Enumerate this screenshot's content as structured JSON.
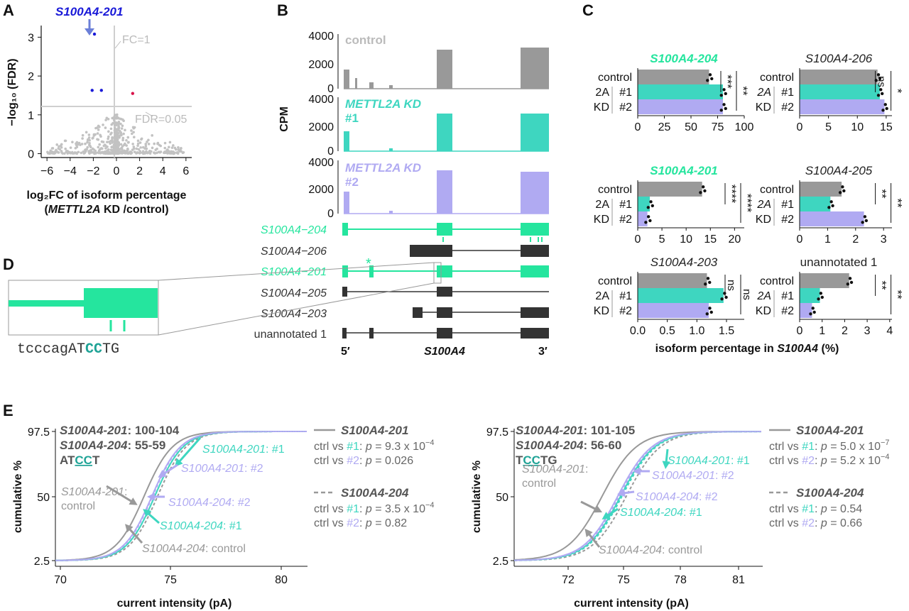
{
  "colors": {
    "control": "#999999",
    "kd1": "#3ed6c0",
    "kd2": "#b0aaf2",
    "dark": "#333333",
    "blue": "#1a1ad8",
    "green": "#25e59e"
  },
  "panels": {
    "a": "A",
    "b": "B",
    "c": "C",
    "d": "D",
    "e": "E"
  },
  "panelA": {
    "highlight": "S100A4-201",
    "fc_label": "FC=1",
    "fdr_label": "FDR=0.05",
    "ylabel": "−log₁₀ (FDR)",
    "xlabel_line1": "log₂FC of isoform percentage",
    "xlabel_prefix": "(",
    "xlabel_gene": "METTL2A",
    "xlabel_suffix": " KD /control)",
    "chart_data": {
      "type": "scatter",
      "xlim": [
        -6.5,
        6.5
      ],
      "ylim": [
        -0.1,
        3.3
      ],
      "x_ticks": [
        "−6",
        "−4",
        "−2",
        "0",
        "2",
        "4",
        "6"
      ],
      "y_ticks": [
        "0",
        "1",
        "2",
        "3"
      ],
      "highlighted": [
        {
          "x": -1.9,
          "y": 3.08,
          "color": "blue"
        },
        {
          "x": -2.1,
          "y": 1.63,
          "color": "blue"
        },
        {
          "x": -1.3,
          "y": 1.63,
          "color": "blue"
        },
        {
          "x": 1.4,
          "y": 1.55,
          "color": "red"
        }
      ]
    }
  },
  "panelB": {
    "ylabel": "CPM",
    "tracks": [
      {
        "name": "control",
        "name2": "",
        "color": "control"
      },
      {
        "name": "METTL2A KD",
        "name2": "#1",
        "color": "kd1"
      },
      {
        "name": "METTL2A KD",
        "name2": "#2",
        "color": "kd2"
      }
    ],
    "y_ticks": [
      "4000",
      "2000",
      "0"
    ],
    "isoforms": [
      {
        "name": "S100A4−204",
        "color": "green",
        "italic": true
      },
      {
        "name": "S100A4−206",
        "color": "dark",
        "italic": true
      },
      {
        "name": "S100A4−201",
        "color": "green",
        "italic": true
      },
      {
        "name": "S100A4−205",
        "color": "dark",
        "italic": true
      },
      {
        "name": "S100A4−203",
        "color": "dark",
        "italic": true
      },
      {
        "name": "unannotated 1",
        "color": "dark",
        "italic": false
      }
    ],
    "five_prime": "5′",
    "three_prime": "3′",
    "gene": "S100A4",
    "asterisk": "*"
  },
  "panelC": {
    "xlabel_prefix": "isoform percentage in ",
    "xlabel_gene": "S100A4",
    "xlabel_suffix": " (%)",
    "row_labels": [
      "control",
      "2A",
      "#1",
      "KD",
      "#2"
    ],
    "chart_data": [
      {
        "title": "S100A4-204",
        "title_color": "green",
        "ticks": [
          "0",
          "25",
          "50",
          "75",
          "100"
        ],
        "xmax": 100,
        "values": [
          67,
          80,
          80
        ],
        "sig": [
          "***",
          "**"
        ]
      },
      {
        "title": "S100A4-206",
        "title_color": "dark",
        "ticks": [
          "0",
          "5",
          "10",
          "15"
        ],
        "xmax": 16,
        "values": [
          13.5,
          13.9,
          14.7
        ],
        "sig": [
          "ns",
          "*"
        ]
      },
      {
        "title": "S100A4-201",
        "title_color": "green",
        "ticks": [
          "0",
          "5",
          "10",
          "15",
          "20"
        ],
        "xmax": 22,
        "values": [
          13.3,
          2.5,
          2.0
        ],
        "sig": [
          "****",
          "****"
        ]
      },
      {
        "title": "S100A4-205",
        "title_color": "dark",
        "ticks": [
          "0",
          "1",
          "2",
          "3"
        ],
        "xmax": 3.3,
        "values": [
          1.5,
          1.1,
          2.3
        ],
        "sig": [
          "**",
          "**"
        ]
      },
      {
        "title": "S100A4-203",
        "title_color": "dark",
        "ticks": [
          "0.0",
          "0.5",
          "1.0",
          "1.5"
        ],
        "xmax": 1.8,
        "values": [
          1.17,
          1.45,
          1.2
        ],
        "sig": [
          "ns",
          "ns"
        ]
      },
      {
        "title": "unannotated 1",
        "title_color": "dark",
        "ticks": [
          "0",
          "1",
          "2",
          "3",
          "4"
        ],
        "xmax": 4.1,
        "values": [
          2.2,
          0.9,
          0.55
        ],
        "sig": [
          "**",
          "**"
        ]
      }
    ]
  },
  "panelD": {
    "seq_lower": "tcccag",
    "seq_at": "AT",
    "seq_cc": "CC",
    "seq_tg": "TG"
  },
  "panelE": {
    "ylabel": "cumulative %",
    "xlabel": "current intensity (pA)",
    "y_ticks": [
      "97.5",
      "50",
      "2.5"
    ],
    "left": {
      "x_ticks": [
        "70",
        "75",
        "80"
      ],
      "info1_name": "S100A4-201",
      "info1_range": ": 100-104",
      "info2_name": "S100A4-204",
      "info2_range": ": 55-59",
      "motif_a": "AT",
      "motif_cc": "CC",
      "motif_t": "T",
      "labels": [
        {
          "name": "S100A4-201",
          "suffix": ": #1",
          "color": "kd1"
        },
        {
          "name": "S100A4-201",
          "suffix": ": #2",
          "color": "kd2"
        },
        {
          "name": "S100A4-201",
          "suffix": ":",
          "line2": "control",
          "color": "control"
        },
        {
          "name": "S100A4-204",
          "suffix": ": #2",
          "color": "kd2"
        },
        {
          "name": "S100A4-204",
          "suffix": ": #1",
          "color": "kd1"
        },
        {
          "name": "S100A4-204",
          "suffix": ": control",
          "color": "control"
        }
      ],
      "stats": {
        "title201": "S100A4-201",
        "a1": "ctrl vs ",
        "a1h": "#1",
        "a1p": ": p = 9.3 x 10",
        "a1e": "−4",
        "a2": "ctrl vs ",
        "a2h": "#2",
        "a2p": ": p = 0.026",
        "a2e": "",
        "title204": "S100A4-204",
        "b1": "ctrl vs ",
        "b1h": "#1",
        "b1p": ": p = 3.5 x 10",
        "b1e": "−4",
        "b2": "ctrl vs ",
        "b2h": "#2",
        "b2p": ": p = 0.82",
        "b2e": ""
      }
    },
    "right": {
      "x_ticks": [
        "72",
        "75",
        "78",
        "81"
      ],
      "info1_name": "S100A4-201",
      "info1_range": ": 101-105",
      "info2_name": "S100A4-204",
      "info2_range": ": 56-60",
      "motif_a": "T",
      "motif_cc": "CC",
      "motif_t": "TG",
      "labels": [
        {
          "name": "S100A4-201",
          "suffix": ": #1",
          "color": "kd1"
        },
        {
          "name": "S100A4-201",
          "suffix": ": #2",
          "color": "kd2"
        },
        {
          "name": "S100A4-201",
          "suffix": ":",
          "line2": "control",
          "color": "control"
        },
        {
          "name": "S100A4-204",
          "suffix": ": #2",
          "color": "kd2"
        },
        {
          "name": "S100A4-204",
          "suffix": ": #1",
          "color": "kd1"
        },
        {
          "name": "S100A4-204",
          "suffix": ": control",
          "color": "control"
        }
      ],
      "stats": {
        "title201": "S100A4-201",
        "a1": "ctrl vs ",
        "a1h": "#1",
        "a1p": ": p = 5.0 x 10",
        "a1e": "−7",
        "a2": "ctrl vs ",
        "a2h": "#2",
        "a2p": ": p = 5.2 x 10",
        "a2e": "−4",
        "title204": "S100A4-204",
        "b1": "ctrl vs ",
        "b1h": "#1",
        "b1p": ": p = 0.54",
        "b1e": "",
        "b2": "ctrl vs ",
        "b2h": "#2",
        "b2p": ": p = 0.66",
        "b2e": ""
      }
    }
  }
}
